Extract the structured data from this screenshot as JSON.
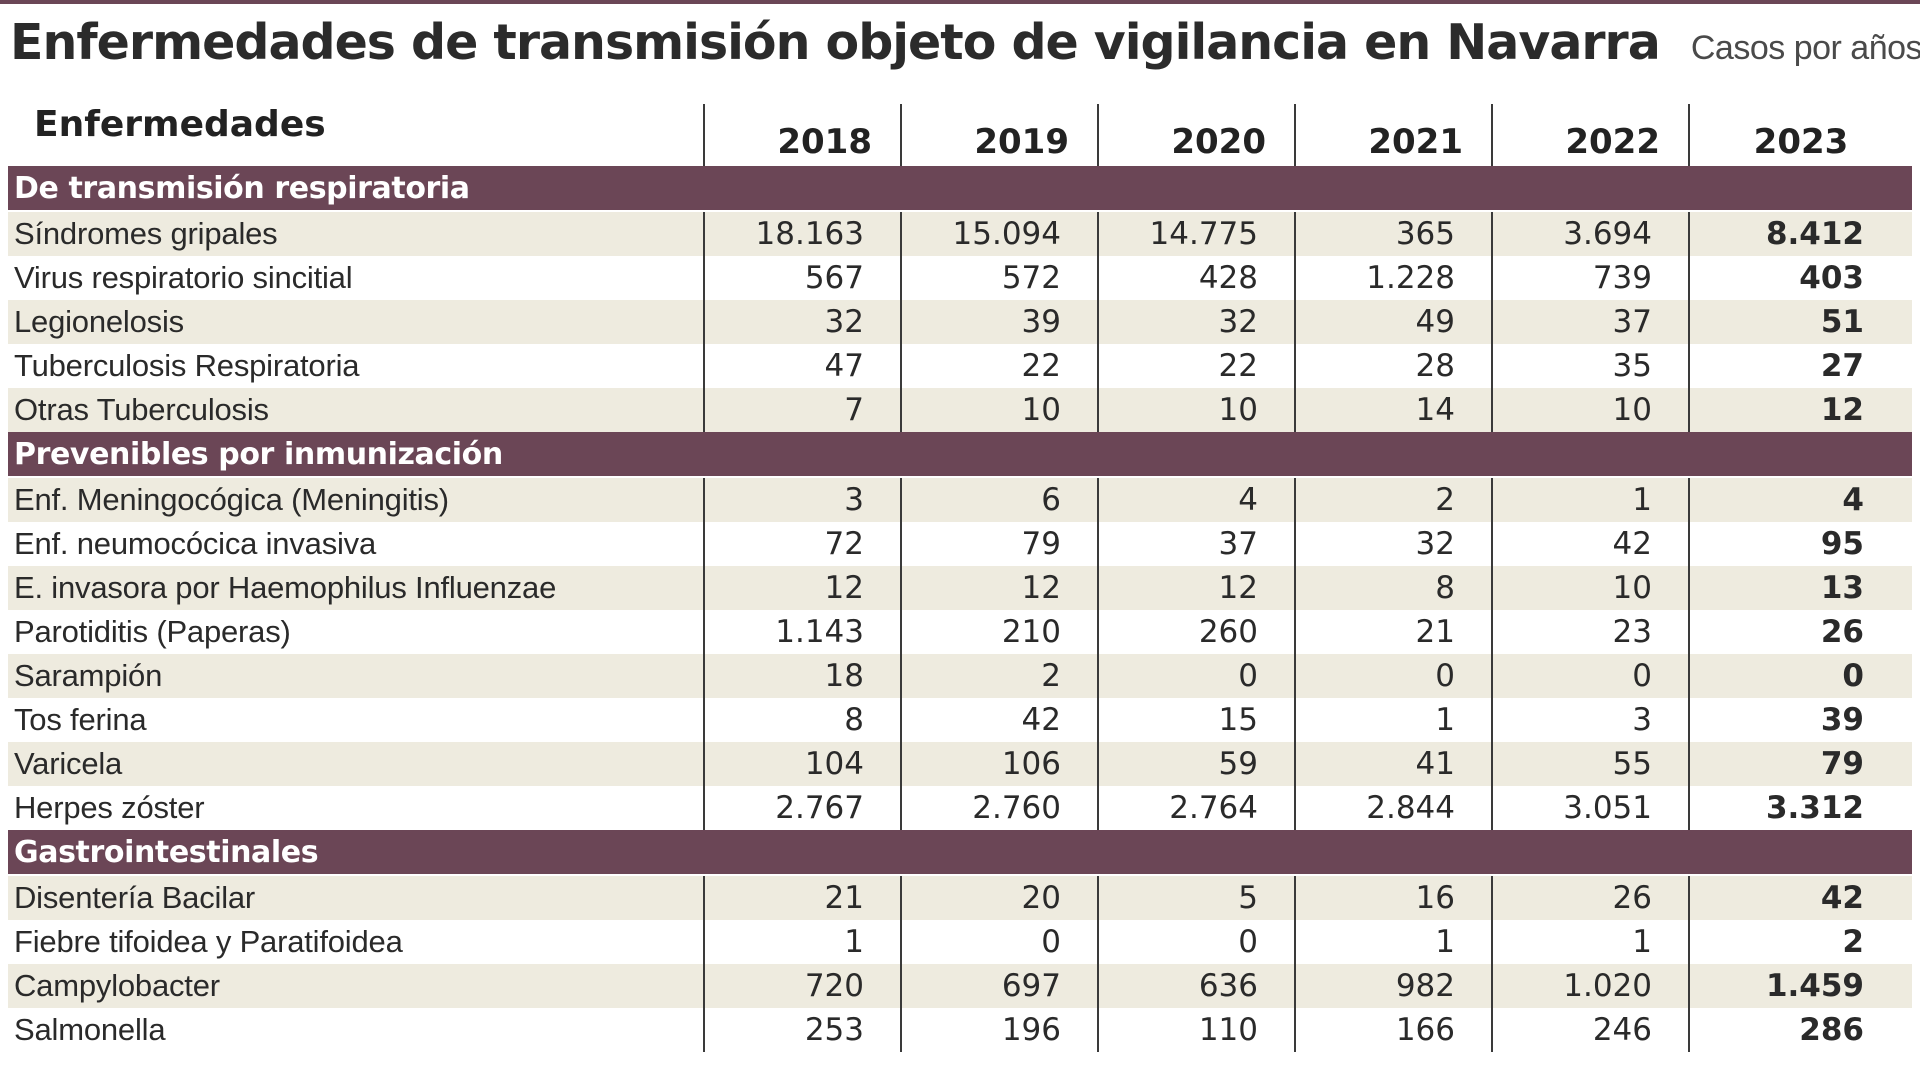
{
  "title": "Enfermedades de transmisión objeto de vigilancia en Navarra",
  "subtitle": "Casos por años",
  "table": {
    "name_header": "Enfermedades",
    "years": [
      "2018",
      "2019",
      "2020",
      "2021",
      "2022",
      "2023"
    ],
    "sections": [
      {
        "label": "De transmisión respiratoria",
        "rows": [
          {
            "name": "Síndromes gripales",
            "values": [
              "18.163",
              "15.094",
              "14.775",
              "365",
              "3.694",
              "8.412"
            ]
          },
          {
            "name": "Virus respiratorio sincitial",
            "values": [
              "567",
              "572",
              "428",
              "1.228",
              "739",
              "403"
            ]
          },
          {
            "name": "Legionelosis",
            "values": [
              "32",
              "39",
              "32",
              "49",
              "37",
              "51"
            ]
          },
          {
            "name": "Tuberculosis Respiratoria",
            "values": [
              "47",
              "22",
              "22",
              "28",
              "35",
              "27"
            ]
          },
          {
            "name": "Otras Tuberculosis",
            "values": [
              "7",
              "10",
              "10",
              "14",
              "10",
              "12"
            ]
          }
        ]
      },
      {
        "label": "Prevenibles por inmunización",
        "rows": [
          {
            "name": "Enf. Meningocógica (Meningitis)",
            "values": [
              "3",
              "6",
              "4",
              "2",
              "1",
              "4"
            ]
          },
          {
            "name": "Enf. neumocócica invasiva",
            "values": [
              "72",
              "79",
              "37",
              "32",
              "42",
              "95"
            ]
          },
          {
            "name": "E. invasora por Haemophilus Influenzae",
            "values": [
              "12",
              "12",
              "12",
              "8",
              "10",
              "13"
            ]
          },
          {
            "name": "Parotiditis (Paperas)",
            "values": [
              "1.143",
              "210",
              "260",
              "21",
              "23",
              "26"
            ]
          },
          {
            "name": "Sarampión",
            "values": [
              "18",
              "2",
              "0",
              "0",
              "0",
              "0"
            ]
          },
          {
            "name": "Tos ferina",
            "values": [
              "8",
              "42",
              "15",
              "1",
              "3",
              "39"
            ]
          },
          {
            "name": "Varicela",
            "values": [
              "104",
              "106",
              "59",
              "41",
              "55",
              "79"
            ]
          },
          {
            "name": "Herpes zóster",
            "values": [
              "2.767",
              "2.760",
              "2.764",
              "2.844",
              "3.051",
              "3.312"
            ]
          }
        ]
      },
      {
        "label": "Gastrointestinales",
        "rows": [
          {
            "name": "Disentería Bacilar",
            "values": [
              "21",
              "20",
              "5",
              "16",
              "26",
              "42"
            ]
          },
          {
            "name": "Fiebre tifoidea y Paratifoidea",
            "values": [
              "1",
              "0",
              "0",
              "1",
              "1",
              "2"
            ]
          },
          {
            "name": "Campylobacter",
            "values": [
              "720",
              "697",
              "636",
              "982",
              "1.020",
              "1.459"
            ]
          },
          {
            "name": "Salmonella",
            "values": [
              "253",
              "196",
              "110",
              "166",
              "246",
              "286"
            ]
          }
        ]
      }
    ]
  },
  "colors": {
    "section_band": "#6b4656",
    "row_shade": "#eeebdf"
  }
}
